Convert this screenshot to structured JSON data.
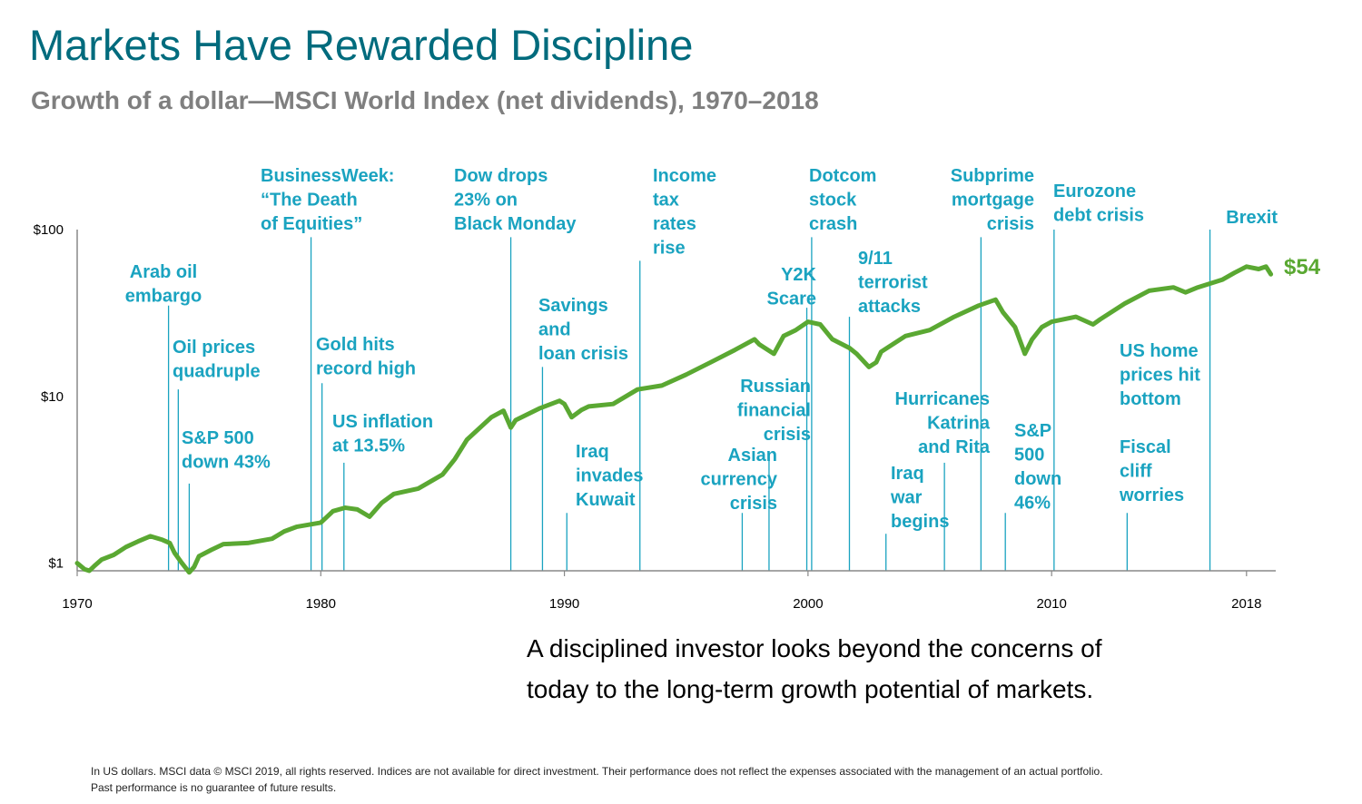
{
  "title": "Markets Have Rewarded Discipline",
  "subtitle": "Growth of a dollar—MSCI World Index (net dividends), 1970–2018",
  "takeaway": "A disciplined investor looks beyond the concerns of today to the long-term growth potential of markets.",
  "footnote": {
    "line1": "In US dollars. MSCI data © MSCI 2019, all rights reserved. Indices are not available for direct investment. Their performance does not reflect the expenses associated with the management of an actual portfolio.",
    "line2": "Past performance is no guarantee of future results."
  },
  "colors": {
    "title": "#006b7d",
    "subtitle": "#7f7f7f",
    "line": "#5aa832",
    "annotation": "#1aa3c0"
  },
  "chart_data": {
    "type": "line",
    "title": "",
    "xlabel": "",
    "ylabel": "",
    "y_scale": "log",
    "xlim": [
      1970,
      2019.2
    ],
    "ylim": [
      0.9,
      100
    ],
    "grid": false,
    "x_ticks": [
      {
        "value": 1970,
        "label": "1970"
      },
      {
        "value": 1980,
        "label": "1980"
      },
      {
        "value": 1990,
        "label": "1990"
      },
      {
        "value": 2000,
        "label": "2000"
      },
      {
        "value": 2010,
        "label": "2010"
      },
      {
        "value": 2018,
        "label": "2018"
      }
    ],
    "y_ticks": [
      {
        "value": 1,
        "label": "$1"
      },
      {
        "value": 10,
        "label": "$10"
      },
      {
        "value": 100,
        "label": "$100"
      }
    ],
    "end_label": "$54",
    "series": [
      {
        "x": [
          1970,
          1970.3,
          1970.5,
          1970.7,
          1971,
          1971.5,
          1972,
          1972.5,
          1973,
          1973.5,
          1973.8,
          1974,
          1974.3,
          1974.6,
          1974.8,
          1975,
          1975.5,
          1976,
          1977,
          1978,
          1978.5,
          1979,
          1980,
          1980.5,
          1981,
          1981.5,
          1982,
          1982.5,
          1983,
          1984,
          1985,
          1985.5,
          1986,
          1987,
          1987.5,
          1987.8,
          1988,
          1989,
          1989.8,
          1990,
          1990.3,
          1990.7,
          1991,
          1992,
          1993,
          1994,
          1995,
          1996,
          1997,
          1997.8,
          1998,
          1998.6,
          1999,
          1999.5,
          2000,
          2000.5,
          2001,
          2001.7,
          2002,
          2002.5,
          2002.8,
          2003,
          2004,
          2005,
          2006,
          2007,
          2007.7,
          2008,
          2008.5,
          2008.9,
          2009.2,
          2009.6,
          2010,
          2011,
          2011.7,
          2012,
          2013,
          2014,
          2015,
          2015.5,
          2016,
          2017,
          2017.5,
          2018,
          2018.5,
          2018.8,
          2019
        ],
        "y": [
          1.0,
          0.92,
          0.9,
          0.96,
          1.05,
          1.12,
          1.25,
          1.35,
          1.45,
          1.38,
          1.32,
          1.15,
          1.0,
          0.88,
          0.95,
          1.1,
          1.2,
          1.3,
          1.32,
          1.4,
          1.55,
          1.65,
          1.75,
          2.05,
          2.15,
          2.1,
          1.9,
          2.3,
          2.6,
          2.8,
          3.4,
          4.2,
          5.5,
          7.5,
          8.2,
          6.5,
          7.2,
          8.5,
          9.4,
          9.0,
          7.5,
          8.3,
          8.7,
          9.0,
          11.0,
          11.6,
          13.5,
          16.0,
          19.0,
          22.0,
          20.5,
          18.0,
          23.0,
          25.0,
          28.0,
          27.0,
          22.0,
          19.5,
          18.0,
          15.0,
          16.0,
          18.5,
          23.0,
          25.0,
          30.0,
          35.0,
          38.0,
          32.0,
          26.0,
          18.0,
          22.0,
          26.0,
          28.0,
          30.0,
          27.0,
          29.0,
          36.0,
          43.0,
          45.0,
          42.0,
          45.0,
          50.0,
          55.0,
          60.0,
          58.0,
          60.0,
          54.0
        ]
      }
    ],
    "annotations": [
      {
        "year": 1973.75,
        "value": 35,
        "label": [
          "Arab oil",
          "embargo"
        ]
      },
      {
        "year": 1974.15,
        "value": 11,
        "label": [
          "Oil prices",
          "quadruple"
        ]
      },
      {
        "year": 1974.6,
        "value": 3,
        "label": [
          "S&P 500",
          "down 43%"
        ]
      },
      {
        "year": 1979.6,
        "value": 90,
        "label": [
          "BusinessWeek:",
          "“The Death",
          "of Equities”"
        ]
      },
      {
        "year": 1980.05,
        "value": 12,
        "label": [
          "Gold hits",
          "record high"
        ]
      },
      {
        "year": 1980.95,
        "value": 4,
        "label": [
          "US inflation",
          "at 13.5%"
        ]
      },
      {
        "year": 1987.8,
        "value": 90,
        "label": [
          "Dow drops",
          "23% on",
          "Black Monday"
        ]
      },
      {
        "year": 1989.1,
        "value": 15,
        "label": [
          "Savings",
          "and",
          "loan crisis"
        ]
      },
      {
        "year": 1990.1,
        "value": 2,
        "label": [
          "Iraq",
          "invades",
          "Kuwait"
        ]
      },
      {
        "year": 1993.1,
        "value": 65,
        "label": [
          "Income",
          "tax",
          "rates",
          "rise"
        ]
      },
      {
        "year": 1997.3,
        "value": 2,
        "label": [
          "Asian",
          "currency",
          "crisis"
        ]
      },
      {
        "year": 1998.4,
        "value": 4.5,
        "label": [
          "Russian",
          "financial",
          "crisis"
        ]
      },
      {
        "year": 1999.95,
        "value": 34,
        "label": [
          "Y2K",
          "Scare"
        ]
      },
      {
        "year": 2000.15,
        "value": 90,
        "label": [
          "Dotcom",
          "stock",
          "crash"
        ]
      },
      {
        "year": 2001.7,
        "value": 30,
        "label": [
          "9/11",
          "terrorist",
          "attacks"
        ]
      },
      {
        "year": 2003.2,
        "value": 1.5,
        "label": [
          "Iraq",
          "war",
          "begins"
        ]
      },
      {
        "year": 2005.6,
        "value": 4,
        "label": [
          "Hurricanes",
          "Katrina",
          "and Rita"
        ]
      },
      {
        "year": 2007.1,
        "value": 90,
        "label": [
          "Subprime",
          "mortgage",
          "crisis"
        ]
      },
      {
        "year": 2008.1,
        "value": 2,
        "label": [
          "S&P",
          "500",
          "down",
          "46%"
        ]
      },
      {
        "year": 2010.1,
        "value": 100,
        "label": [
          "Eurozone",
          "debt crisis"
        ]
      },
      {
        "year": 2013.1,
        "value": 2,
        "label": [
          "Fiscal",
          "cliff",
          "worries"
        ]
      },
      {
        "year": 2016.5,
        "value": 100,
        "label": [
          "Brexit"
        ]
      },
      {
        "year": 2016.5,
        "value": 100,
        "label": [
          "US home",
          "prices hit",
          "bottom"
        ]
      }
    ]
  }
}
